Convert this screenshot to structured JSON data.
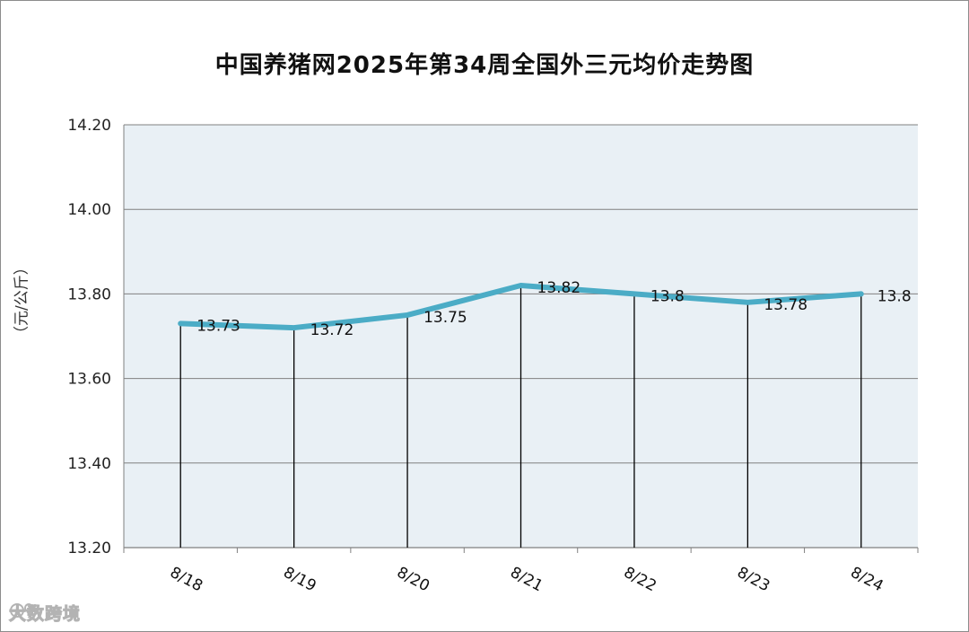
{
  "chart_data": {
    "type": "line",
    "title": "中国养猪网2025年第34周全国外三元均价走势图",
    "ylabel": "（元/公斤）",
    "xlabel": "",
    "categories": [
      "8/18",
      "8/19",
      "8/20",
      "8/21",
      "8/22",
      "8/23",
      "8/24"
    ],
    "values": [
      13.73,
      13.72,
      13.75,
      13.82,
      13.8,
      13.78,
      13.8
    ],
    "data_labels": [
      "13.73",
      "13.72",
      "13.75",
      "13.82",
      "13.8",
      "13.78",
      "13.8"
    ],
    "ylim": [
      13.2,
      14.2
    ],
    "yticks": [
      "13.20",
      "13.40",
      "13.60",
      "13.80",
      "14.00",
      "14.20"
    ],
    "grid": true,
    "drop_lines": true,
    "legend": "none",
    "colors": {
      "line": "#4bacc6",
      "plot_bg": "#e9f0f5",
      "grid": "#808080",
      "axis": "#808080"
    }
  },
  "watermark": {
    "text": "大数跨境",
    "icon": "brand-logo-icon"
  }
}
